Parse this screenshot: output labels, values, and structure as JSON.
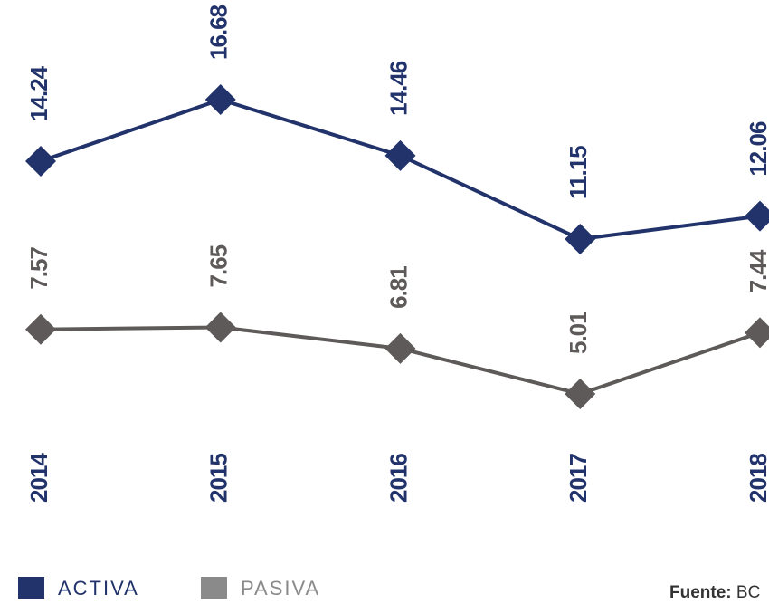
{
  "chart_data": {
    "type": "line",
    "categories": [
      "2014",
      "2015",
      "2016",
      "2017",
      "2018"
    ],
    "series": [
      {
        "name": "ACTIVA",
        "color": "#22336b",
        "values": [
          14.24,
          16.68,
          14.46,
          11.15,
          12.06
        ]
      },
      {
        "name": "PASIVA",
        "color": "#5f5a5a",
        "legend_color": "#8a8a8a",
        "values": [
          7.57,
          7.65,
          6.81,
          5.01,
          7.44
        ]
      }
    ],
    "source": {
      "label": "Fuente:",
      "text": "BC"
    }
  }
}
